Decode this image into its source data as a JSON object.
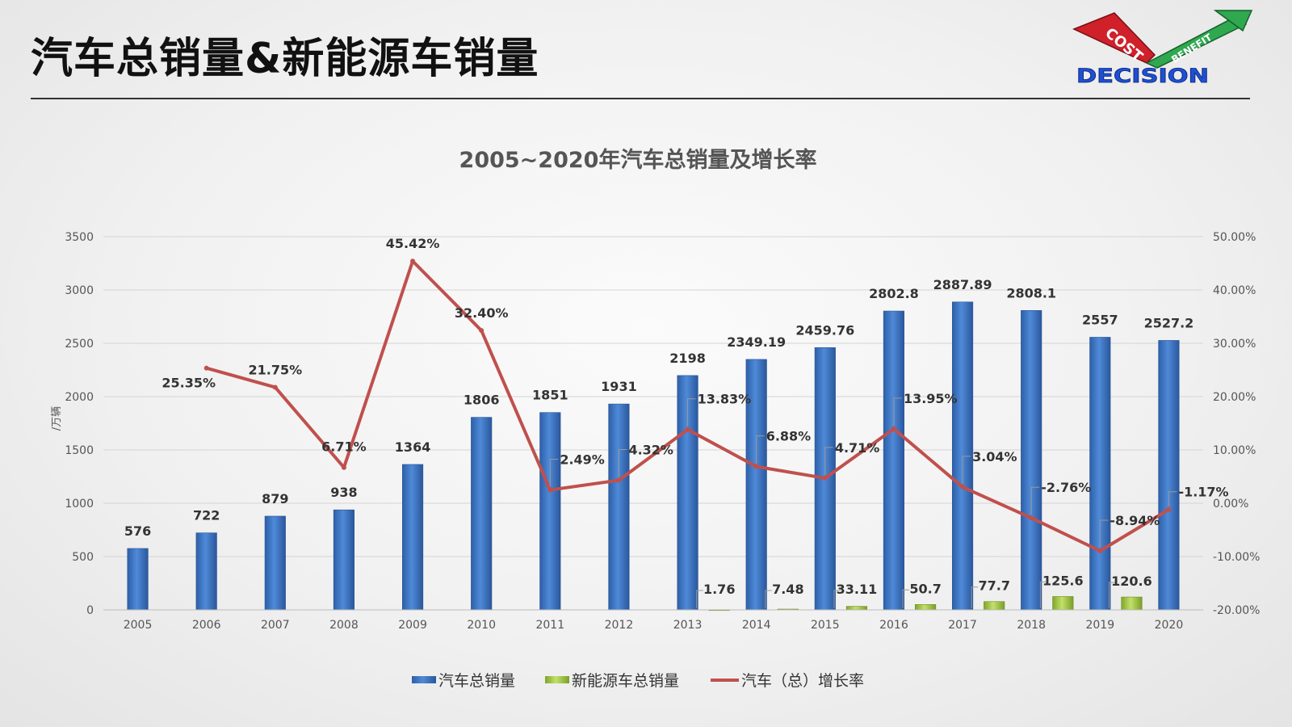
{
  "slide": {
    "title": "汽车总销量&新能源车销量"
  },
  "logo": {
    "word_cost": "COST",
    "word_benefit": "BENEFIT",
    "word_decision": "DECISION",
    "colors": {
      "red": "#d0202a",
      "green": "#2fa84f",
      "blue": "#1f4fd1"
    }
  },
  "chart_data": {
    "type": "bar",
    "title": "2005~2020年汽车总销量及增长率",
    "ylabel": "/万辆",
    "y2label": "",
    "categories": [
      "2005",
      "2006",
      "2007",
      "2008",
      "2009",
      "2010",
      "2011",
      "2012",
      "2013",
      "2014",
      "2015",
      "2016",
      "2017",
      "2018",
      "2019",
      "2020"
    ],
    "ylim": [
      0,
      3500
    ],
    "yticks": [
      0,
      500,
      1000,
      1500,
      2000,
      2500,
      3000,
      3500
    ],
    "y2lim": [
      -20,
      50
    ],
    "y2ticks": [
      -20,
      -10,
      0,
      10,
      20,
      30,
      40,
      50
    ],
    "y2tick_labels": [
      "-20.00%",
      "-10.00%",
      "0.00%",
      "10.00%",
      "20.00%",
      "30.00%",
      "40.00%",
      "50.00%"
    ],
    "grid": true,
    "legend_placement": "bottom",
    "series": [
      {
        "name": "汽车总销量",
        "kind": "bar",
        "color": "#3a73c4",
        "values": [
          576,
          722,
          879,
          938,
          1364,
          1806,
          1851,
          1931,
          2198,
          2349.19,
          2459.76,
          2802.8,
          2887.89,
          2808.1,
          2557,
          2527.2
        ],
        "labels": [
          "576",
          "722",
          "879",
          "938",
          "1364",
          "1806",
          "1851",
          "1931",
          "2198",
          "2349.19",
          "2459.76",
          "2802.8",
          "2887.89",
          "2808.1",
          "2557",
          "2527.2"
        ]
      },
      {
        "name": "新能源车总销量",
        "kind": "bar",
        "color": "#9dc43a",
        "values": [
          null,
          null,
          null,
          null,
          null,
          null,
          null,
          null,
          1.76,
          7.48,
          33.11,
          50.7,
          77.7,
          125.6,
          120.6,
          null
        ],
        "labels": [
          null,
          null,
          null,
          null,
          null,
          null,
          null,
          null,
          "1.76",
          "7.48",
          "33.11",
          "50.7",
          "77.7",
          "125.6",
          "120.6",
          null
        ]
      },
      {
        "name": "汽车（总）增长率",
        "kind": "line",
        "axis": "secondary",
        "color": "#c0504d",
        "values": [
          null,
          25.35,
          21.75,
          6.71,
          45.42,
          32.4,
          2.49,
          4.32,
          13.83,
          6.88,
          4.71,
          13.95,
          3.04,
          -2.76,
          -8.94,
          -1.17
        ],
        "labels": [
          null,
          "25.35%",
          "21.75%",
          "6.71%",
          "45.42%",
          "32.40%",
          "2.49%",
          "4.32%",
          "13.83%",
          "6.88%",
          "4.71%",
          "13.95%",
          "3.04%",
          "-2.76%",
          "-8.94%",
          "-1.17%"
        ]
      }
    ]
  }
}
